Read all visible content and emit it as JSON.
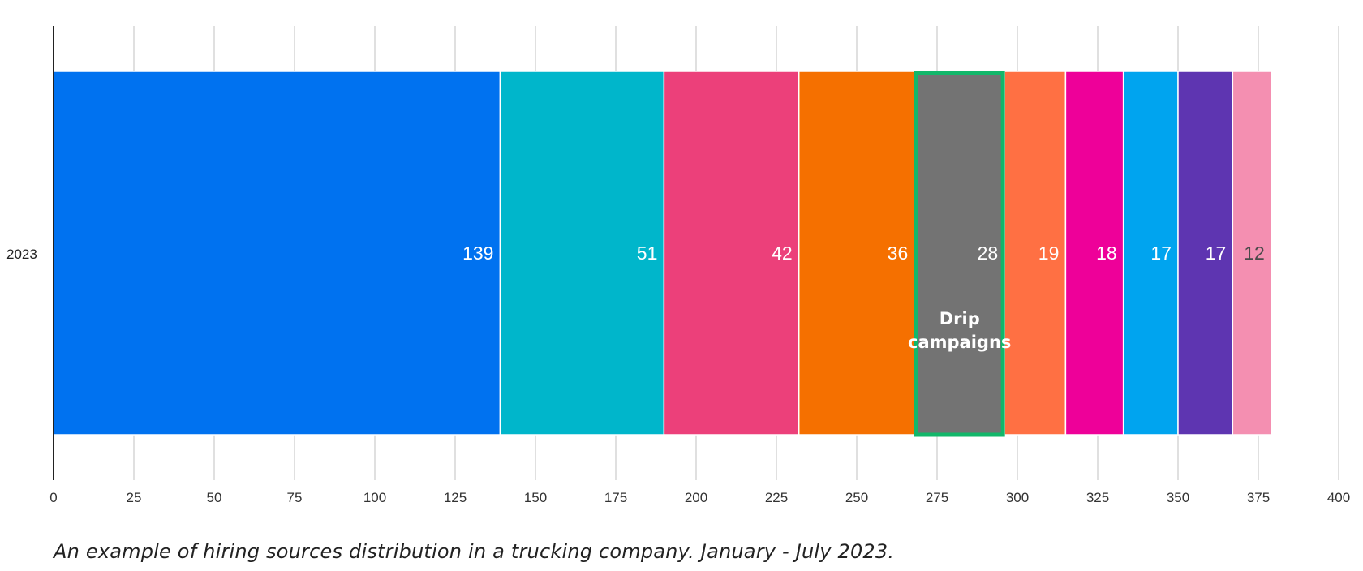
{
  "chart_data": {
    "type": "bar",
    "orientation": "horizontal",
    "stacked": true,
    "categories": [
      "2023"
    ],
    "series": [
      {
        "values": [
          139
        ],
        "color": "#0072F0"
      },
      {
        "values": [
          51
        ],
        "color": "#00B6CB"
      },
      {
        "values": [
          42
        ],
        "color": "#EC407A"
      },
      {
        "values": [
          36
        ],
        "color": "#F57000"
      },
      {
        "values": [
          28
        ],
        "color": "#737373",
        "annotation": "Drip campaigns",
        "highlight_color": "#12B76A"
      },
      {
        "values": [
          19
        ],
        "color": "#FF7043"
      },
      {
        "values": [
          18
        ],
        "color": "#EE0099"
      },
      {
        "values": [
          17
        ],
        "color": "#00A4EF"
      },
      {
        "values": [
          17
        ],
        "color": "#5E35B1"
      },
      {
        "values": [
          12
        ],
        "color": "#F48FB1"
      }
    ],
    "xlim": [
      0,
      400
    ],
    "xticks": [
      0,
      25,
      50,
      75,
      100,
      125,
      150,
      175,
      200,
      225,
      250,
      275,
      300,
      325,
      350,
      375,
      400
    ],
    "grid": true,
    "legend": "none"
  },
  "caption": "An example of hiring sources distribution in a trucking company. January - July 2023."
}
